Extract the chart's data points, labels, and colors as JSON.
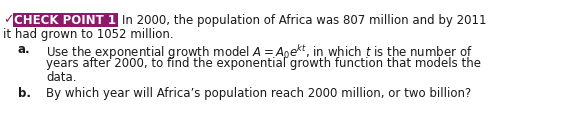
{
  "checkpoint_label": "CHECK POINT 1",
  "checkpoint_bg": "#8B1A6B",
  "checkpoint_text_color": "#ffffff",
  "body_text_color": "#1a1a1a",
  "bg_color": "#ffffff",
  "checkmark_color": "#8B1A6B",
  "font_size_header": 8.5,
  "font_size_body": 8.5,
  "line1_intro": "In 2000, the population of Africa was 807 million and by 2011",
  "line2_intro": "it had grown to 1052 million.",
  "item_a_label": "a.",
  "item_a_line1_pre": "Use the exponential growth model ",
  "item_a_formula": "$A = A_0e^{kt}$",
  "item_a_line1_post": ", in which $t$ is the number of",
  "item_a_line2": "years after 2000, to find the exponential growth function that models the",
  "item_a_line3": "data.",
  "item_b_label": "b.",
  "item_b_text": "By which year will Africa’s population reach 2000 million, or two billion?"
}
